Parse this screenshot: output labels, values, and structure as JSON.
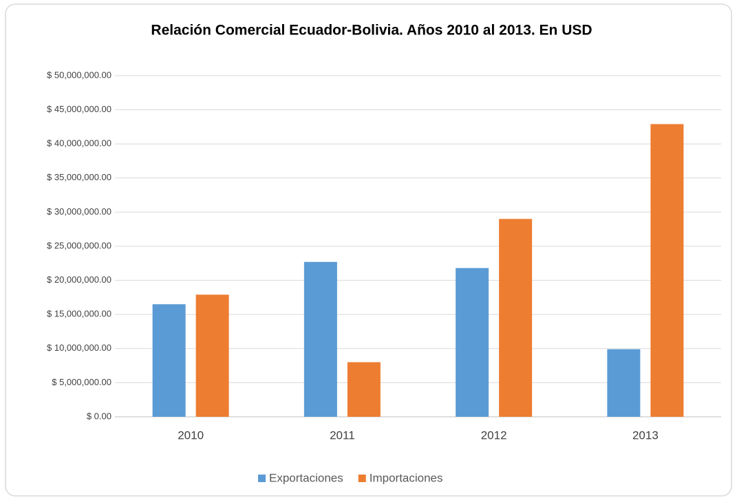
{
  "chart_data": {
    "type": "bar",
    "title": "Relación Comercial Ecuador-Bolivia. Años 2010 al 2013. En USD",
    "categories": [
      "2010",
      "2011",
      "2012",
      "2013"
    ],
    "series": [
      {
        "name": "Exportaciones",
        "color": "#5b9bd5",
        "values": [
          16500000,
          22700000,
          21800000,
          9900000
        ]
      },
      {
        "name": "Importaciones",
        "color": "#ed7d31",
        "values": [
          17900000,
          8000000,
          29000000,
          42900000
        ]
      }
    ],
    "ylim": [
      0,
      50000000
    ],
    "yticks": [
      {
        "value": 0,
        "label": "$ 0.00"
      },
      {
        "value": 5000000,
        "label": "$ 5,000,000.00"
      },
      {
        "value": 10000000,
        "label": "$ 10,000,000.00"
      },
      {
        "value": 15000000,
        "label": "$ 15,000,000.00"
      },
      {
        "value": 20000000,
        "label": "$ 20,000,000.00"
      },
      {
        "value": 25000000,
        "label": "$ 25,000,000.00"
      },
      {
        "value": 30000000,
        "label": "$ 30,000,000.00"
      },
      {
        "value": 35000000,
        "label": "$ 35,000,000.00"
      },
      {
        "value": 40000000,
        "label": "$ 40,000,000.00"
      },
      {
        "value": 45000000,
        "label": "$ 45,000,000.00"
      },
      {
        "value": 50000000,
        "label": "$ 50,000,000.00"
      }
    ],
    "grid": true,
    "legend": "bottom"
  }
}
